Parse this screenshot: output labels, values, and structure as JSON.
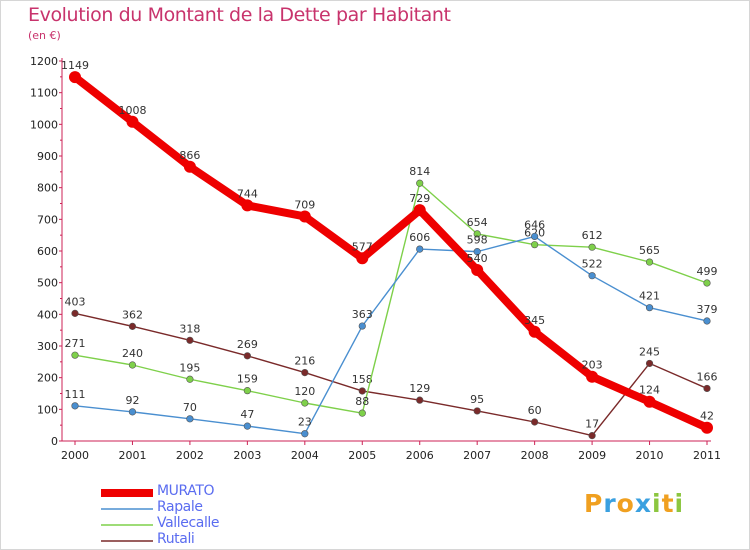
{
  "header": {
    "title": "Evolution du Montant de la Dette par Habitant",
    "subtitle": "(en €)"
  },
  "logo": {
    "text": "Proxiti",
    "letters": [
      {
        "ch": "P",
        "color": "#f0a020"
      },
      {
        "ch": "r",
        "color": "#3aa0e0"
      },
      {
        "ch": "o",
        "color": "#f0a020"
      },
      {
        "ch": "x",
        "color": "#3aa0e0"
      },
      {
        "ch": "i",
        "color": "#8cc63f"
      },
      {
        "ch": "t",
        "color": "#f0a020"
      },
      {
        "ch": "i",
        "color": "#8cc63f"
      }
    ]
  },
  "chart_data": {
    "type": "line",
    "title": "Evolution du Montant de la Dette par Habitant",
    "subtitle": "(en €)",
    "x": [
      "2000",
      "2001",
      "2002",
      "2003",
      "2004",
      "2005",
      "2006",
      "2007",
      "2008",
      "2009",
      "2010",
      "2011"
    ],
    "ylim": [
      0,
      1200
    ],
    "yticks": [
      0,
      100,
      200,
      300,
      400,
      500,
      600,
      700,
      800,
      900,
      1000,
      1100,
      1200
    ],
    "grid": false,
    "legend_position": "bottom-left",
    "series": [
      {
        "name": "MURATO",
        "color": "#ee0000",
        "values": [
          1149,
          1008,
          866,
          744,
          709,
          577,
          729,
          540,
          345,
          203,
          124,
          42
        ]
      },
      {
        "name": "Rapale",
        "color": "#4a8fd0",
        "values": [
          111,
          92,
          70,
          47,
          23,
          363,
          606,
          598,
          646,
          522,
          421,
          379
        ]
      },
      {
        "name": "Vallecalle",
        "color": "#7ed04a",
        "values": [
          271,
          240,
          195,
          159,
          120,
          88,
          814,
          654,
          620,
          612,
          565,
          499
        ]
      },
      {
        "name": "Rutali",
        "color": "#7a2a2a",
        "values": [
          403,
          362,
          318,
          269,
          216,
          158,
          129,
          95,
          60,
          17,
          245,
          166
        ]
      }
    ]
  }
}
